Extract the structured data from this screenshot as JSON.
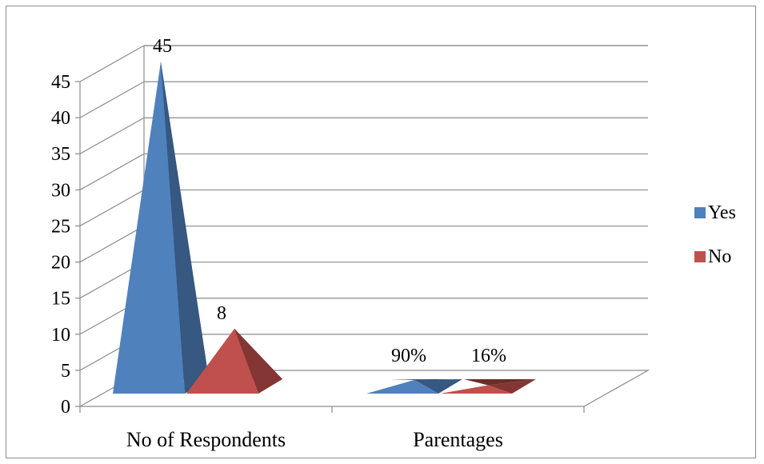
{
  "chart_data": {
    "type": "bar",
    "style": "3d-pyramid",
    "categories": [
      "No of Respondents",
      "Parentages"
    ],
    "series": [
      {
        "name": "Yes",
        "values": [
          45,
          0.9
        ],
        "labels": [
          "45",
          "90%"
        ],
        "color": "#4f81bd"
      },
      {
        "name": "No",
        "values": [
          8,
          0.16
        ],
        "labels": [
          "8",
          "16%"
        ],
        "color": "#c0504d"
      }
    ],
    "ylim": [
      0,
      45
    ],
    "yticks": [
      "0",
      "5",
      "10",
      "15",
      "20",
      "25",
      "30",
      "35",
      "40",
      "45"
    ],
    "grid": true,
    "legend_position": "right",
    "title": "",
    "xlabel": "",
    "ylabel": ""
  }
}
